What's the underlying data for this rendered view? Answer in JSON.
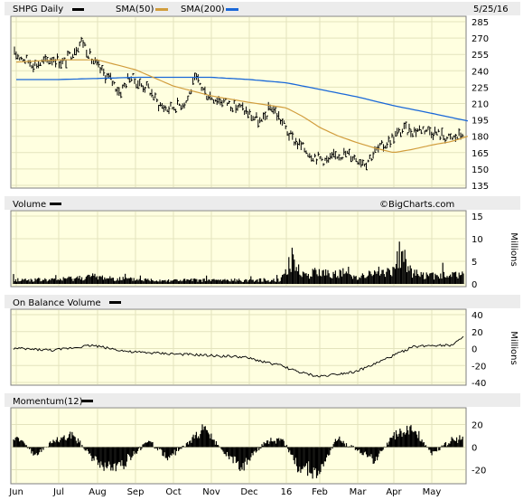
{
  "header": {
    "title": "SHPG Daily",
    "legend_sma50": "SMA(50)",
    "legend_sma200": "SMA(200)",
    "date": "5/25/16"
  },
  "colors": {
    "background": "#ffffe0",
    "grid": "#e3e3bd",
    "price": "#000000",
    "sma50": "#d19d3d",
    "sma200": "#1a68d8",
    "header_bar": "#ececec"
  },
  "watermark": "©BigCharts.com",
  "panels": {
    "volume": {
      "title": "Volume",
      "unit": "Millions"
    },
    "obv": {
      "title": "On Balance Volume",
      "unit": "Millions"
    },
    "momentum": {
      "title": "Momentum(12)"
    }
  },
  "x_labels": [
    "Jun",
    "Jul",
    "Aug",
    "Sep",
    "Oct",
    "Nov",
    "Dec",
    "16",
    "Feb",
    "Mar",
    "Apr",
    "May"
  ],
  "chart_data": [
    {
      "type": "line",
      "title": "SHPG Daily",
      "x_type": "month-index",
      "y_ticks": [
        135,
        150,
        165,
        180,
        195,
        210,
        225,
        240,
        255,
        270,
        285
      ],
      "ylim": [
        135,
        285
      ],
      "series": [
        {
          "name": "SHPG Daily",
          "style": "ohlc",
          "x": [
            0.0,
            0.25,
            0.5,
            0.75,
            1.0,
            1.25,
            1.5,
            1.75,
            2.0,
            2.25,
            2.5,
            2.75,
            3.0,
            3.25,
            3.5,
            3.75,
            4.0,
            4.25,
            4.5,
            4.75,
            5.0,
            5.25,
            5.5,
            5.75,
            6.0,
            6.25,
            6.5,
            6.75,
            7.0,
            7.25,
            7.5,
            7.75,
            8.0,
            8.25,
            8.5,
            8.75,
            9.0,
            9.25,
            9.5,
            9.75,
            10.0,
            10.25,
            10.5,
            10.75,
            11.0,
            11.25,
            11.5,
            11.75,
            11.95
          ],
          "values": [
            255,
            250,
            246,
            248,
            252,
            247,
            258,
            268,
            250,
            240,
            232,
            220,
            235,
            228,
            224,
            210,
            205,
            208,
            212,
            233,
            220,
            215,
            212,
            208,
            205,
            198,
            192,
            208,
            195,
            180,
            172,
            165,
            160,
            157,
            163,
            164,
            160,
            156,
            166,
            172,
            180,
            186,
            185,
            187,
            185,
            181,
            177,
            181,
            190
          ]
        },
        {
          "name": "SMA(50)",
          "x": [
            0.0,
            1.0,
            2.0,
            3.0,
            4.0,
            5.0,
            6.0,
            7.0,
            7.5,
            8.0,
            8.5,
            9.0,
            9.5,
            10.0,
            10.5,
            11.0,
            11.5,
            11.95
          ],
          "values": [
            248,
            250,
            250,
            241,
            226,
            217,
            211,
            206,
            198,
            188,
            180,
            174,
            169,
            165,
            168,
            172,
            175,
            180
          ]
        },
        {
          "name": "SMA(200)",
          "x": [
            0.0,
            1.0,
            2.0,
            3.0,
            4.0,
            5.0,
            6.0,
            7.0,
            8.0,
            9.0,
            10.0,
            11.0,
            11.95
          ],
          "values": [
            232,
            232,
            233,
            234,
            234,
            234,
            232,
            229,
            223,
            216,
            208,
            201,
            194
          ]
        }
      ]
    },
    {
      "type": "bar",
      "title": "Volume",
      "ylabel": "Millions",
      "y_ticks": [
        0,
        5,
        10,
        15
      ],
      "ylim": [
        0,
        15
      ],
      "x": [
        0.0,
        1.0,
        2.0,
        3.0,
        4.0,
        5.0,
        6.0,
        7.0,
        7.3,
        7.6,
        8.0,
        8.5,
        9.0,
        9.5,
        10.0,
        10.2,
        10.5,
        11.0,
        11.5,
        11.95
      ],
      "values": [
        1.0,
        1.0,
        1.8,
        1.1,
        0.9,
        0.9,
        0.9,
        1.0,
        6.0,
        2.2,
        2.8,
        2.5,
        1.8,
        2.5,
        3.0,
        8.5,
        2.5,
        2.0,
        2.0,
        2.5
      ]
    },
    {
      "type": "line",
      "title": "On Balance Volume",
      "ylabel": "Millions",
      "y_ticks": [
        -40,
        -20,
        0,
        20,
        40
      ],
      "ylim": [
        -40,
        40
      ],
      "x": [
        0.0,
        1.0,
        2.0,
        2.5,
        3.0,
        4.0,
        5.0,
        6.0,
        7.0,
        7.5,
        8.0,
        8.5,
        9.0,
        9.5,
        10.0,
        10.5,
        11.0,
        11.5,
        11.95
      ],
      "values": [
        0,
        -2,
        4,
        0,
        -4,
        -6,
        -8,
        -10,
        -20,
        -28,
        -33,
        -30,
        -27,
        -18,
        -8,
        2,
        4,
        4,
        16
      ]
    },
    {
      "type": "area",
      "title": "Momentum(12)",
      "y_ticks": [
        -20,
        0,
        20
      ],
      "ylim": [
        -30,
        30
      ],
      "x": [
        0.0,
        0.5,
        1.0,
        1.5,
        2.0,
        2.5,
        3.0,
        3.5,
        4.0,
        4.5,
        5.0,
        5.5,
        6.0,
        6.5,
        7.0,
        7.5,
        8.0,
        8.5,
        9.0,
        9.5,
        10.0,
        10.5,
        11.0,
        11.5,
        11.95
      ],
      "values": [
        10,
        -8,
        6,
        12,
        -10,
        -25,
        -12,
        6,
        -10,
        2,
        20,
        -8,
        -18,
        2,
        10,
        -20,
        -25,
        8,
        -2,
        -12,
        12,
        18,
        -6,
        6,
        12
      ]
    }
  ]
}
